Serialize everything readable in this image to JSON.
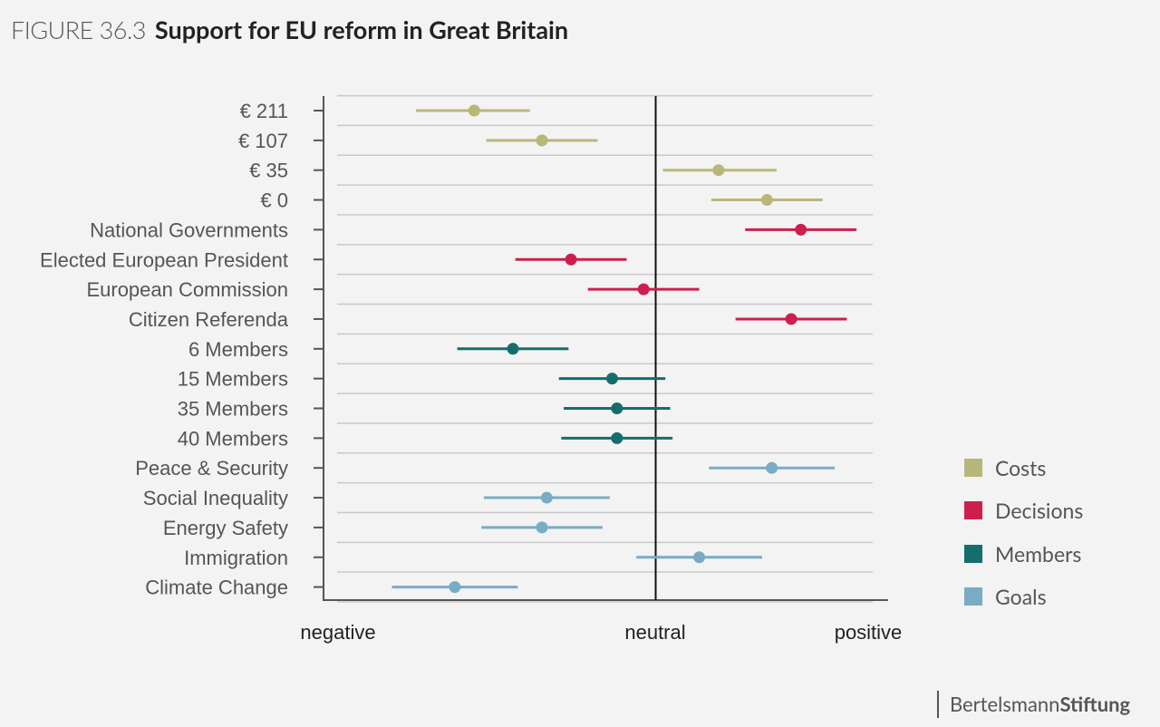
{
  "figure": {
    "label": "FIGURE 36.3",
    "title": "Support for EU reform in Great Britain"
  },
  "chart_data": {
    "type": "dot-interval",
    "title": "Support for EU reform in Great Britain",
    "x_axis": {
      "low_label": "negative",
      "mid_label": "neutral",
      "high_label": "positive",
      "range": [
        -1,
        1
      ]
    },
    "rows": [
      {
        "label": "€ 211",
        "group": "Costs",
        "est": -0.75,
        "lo": -0.99,
        "hi": -0.52
      },
      {
        "label": "€ 107",
        "group": "Costs",
        "est": -0.47,
        "lo": -0.7,
        "hi": -0.24
      },
      {
        "label": "€ 35",
        "group": "Costs",
        "est": 0.26,
        "lo": 0.03,
        "hi": 0.5
      },
      {
        "label": "€ 0",
        "group": "Costs",
        "est": 0.46,
        "lo": 0.23,
        "hi": 0.69
      },
      {
        "label": "National Governments",
        "group": "Decisions",
        "est": 0.6,
        "lo": 0.37,
        "hi": 0.83
      },
      {
        "label": "Elected European President",
        "group": "Decisions",
        "est": -0.35,
        "lo": -0.58,
        "hi": -0.12
      },
      {
        "label": "European Commission",
        "group": "Decisions",
        "est": -0.05,
        "lo": -0.28,
        "hi": 0.18
      },
      {
        "label": "Citizen Referenda",
        "group": "Decisions",
        "est": 0.56,
        "lo": 0.33,
        "hi": 0.79
      },
      {
        "label": "6 Members",
        "group": "Members",
        "est": -0.59,
        "lo": -0.82,
        "hi": -0.36
      },
      {
        "label": "15 Members",
        "group": "Members",
        "est": -0.18,
        "lo": -0.4,
        "hi": 0.04
      },
      {
        "label": "35 Members",
        "group": "Members",
        "est": -0.16,
        "lo": -0.38,
        "hi": 0.06
      },
      {
        "label": "40 Members",
        "group": "Members",
        "est": -0.16,
        "lo": -0.39,
        "hi": 0.07
      },
      {
        "label": "Peace & Security",
        "group": "Goals",
        "est": 0.48,
        "lo": 0.22,
        "hi": 0.74
      },
      {
        "label": "Social Inequality",
        "group": "Goals",
        "est": -0.45,
        "lo": -0.71,
        "hi": -0.19
      },
      {
        "label": "Energy Safety",
        "group": "Goals",
        "est": -0.47,
        "lo": -0.72,
        "hi": -0.22
      },
      {
        "label": "Immigration",
        "group": "Goals",
        "est": 0.18,
        "lo": -0.08,
        "hi": 0.44
      },
      {
        "label": "Climate Change",
        "group": "Goals",
        "est": -0.83,
        "lo": -1.09,
        "hi": -0.57
      }
    ],
    "legend": [
      {
        "name": "Costs",
        "color": "#b9b67a"
      },
      {
        "name": "Decisions",
        "color": "#cc1f4d"
      },
      {
        "name": "Members",
        "color": "#146e6c"
      },
      {
        "name": "Goals",
        "color": "#78acc5"
      }
    ]
  },
  "brand": {
    "part1": "Bertelsmann",
    "part2": "Stiftung"
  }
}
